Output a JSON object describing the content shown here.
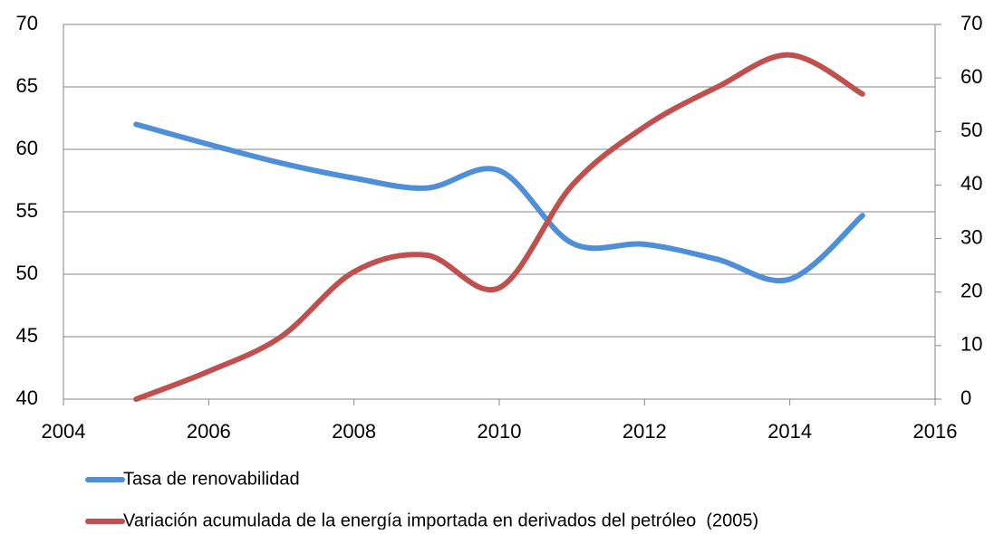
{
  "chart_data": {
    "type": "line",
    "x": [
      2005,
      2006,
      2007,
      2008,
      2009,
      2010,
      2011,
      2012,
      2013,
      2014,
      2015
    ],
    "series": [
      {
        "name": "Tasa de renovabilidad",
        "color": "#4f8fd9",
        "values": [
          62.0,
          60.4,
          58.9,
          57.7,
          56.9,
          58.3,
          52.5,
          52.4,
          51.2,
          49.6,
          54.7
        ]
      },
      {
        "name": "Variación acumulada de la energía importada en derivados del petróleo  (2005)",
        "color": "#c0504d",
        "axis": "y2",
        "values": [
          0,
          5.2,
          11.7,
          23.8,
          26.9,
          20.8,
          39.9,
          50.9,
          58.3,
          64.3,
          57.0
        ]
      }
    ],
    "xlim": [
      2004,
      2016
    ],
    "xticks": [
      2004,
      2006,
      2008,
      2010,
      2012,
      2014,
      2016
    ],
    "ylim": [
      40,
      70
    ],
    "yticks": [
      40,
      45,
      50,
      55,
      60,
      65,
      70
    ],
    "y2lim": [
      0,
      70
    ],
    "y2ticks": [
      0,
      10,
      20,
      30,
      40,
      50,
      60,
      70
    ],
    "grid": true,
    "smooth": true,
    "legend": "bottom"
  }
}
